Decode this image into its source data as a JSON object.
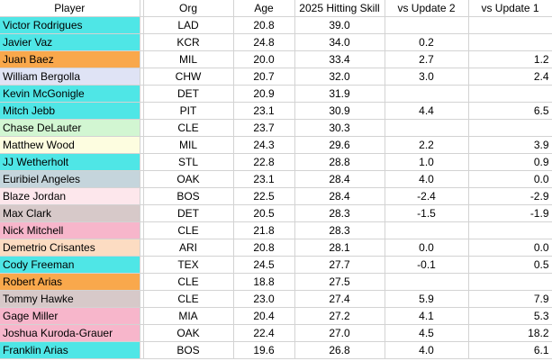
{
  "headers": {
    "player": "Player",
    "org": "Org",
    "age": "Age",
    "skill": "2025 Hitting Skill",
    "vs_update2": "vs Update 2",
    "vs_update1": "vs Update 1"
  },
  "colors": {
    "cyan": "#4fe6e6",
    "orange": "#f9a84c",
    "lavender": "#dfe3f5",
    "mint": "#d2f6d2",
    "cream": "#fdfde0",
    "slate": "#c5d5dc",
    "blush": "#fde7ec",
    "taupe": "#d7c9c9",
    "pink": "#f7b6cb",
    "peach": "#fcdcc2",
    "grid": "#d3d3d3"
  },
  "rows": [
    {
      "player": "Victor Rodrigues",
      "org": "LAD",
      "age": "20.8",
      "skill": "39.0",
      "vs_update2": "",
      "vs_update1": "",
      "color": "#4fe6e6"
    },
    {
      "player": "Javier Vaz",
      "org": "KCR",
      "age": "24.8",
      "skill": "34.0",
      "vs_update2": "0.2",
      "vs_update1": "",
      "color": "#4fe6e6"
    },
    {
      "player": "Juan Baez",
      "org": "MIL",
      "age": "20.0",
      "skill": "33.4",
      "vs_update2": "2.7",
      "vs_update1": "1.2",
      "color": "#f9a84c"
    },
    {
      "player": "William Bergolla",
      "org": "CHW",
      "age": "20.7",
      "skill": "32.0",
      "vs_update2": "3.0",
      "vs_update1": "2.4",
      "color": "#dfe3f5"
    },
    {
      "player": "Kevin McGonigle",
      "org": "DET",
      "age": "20.9",
      "skill": "31.9",
      "vs_update2": "",
      "vs_update1": "",
      "color": "#4fe6e6"
    },
    {
      "player": "Mitch Jebb",
      "org": "PIT",
      "age": "23.1",
      "skill": "30.9",
      "vs_update2": "4.4",
      "vs_update1": "6.5",
      "color": "#4fe6e6"
    },
    {
      "player": "Chase DeLauter",
      "org": "CLE",
      "age": "23.7",
      "skill": "30.3",
      "vs_update2": "",
      "vs_update1": "",
      "color": "#d2f6d2"
    },
    {
      "player": "Matthew Wood",
      "org": "MIL",
      "age": "24.3",
      "skill": "29.6",
      "vs_update2": "2.2",
      "vs_update1": "3.9",
      "color": "#fdfde0"
    },
    {
      "player": "JJ Wetherholt",
      "org": "STL",
      "age": "22.8",
      "skill": "28.8",
      "vs_update2": "1.0",
      "vs_update1": "0.9",
      "color": "#4fe6e6"
    },
    {
      "player": "Euribiel Angeles",
      "org": "OAK",
      "age": "23.1",
      "skill": "28.4",
      "vs_update2": "4.0",
      "vs_update1": "0.0",
      "color": "#c5d5dc"
    },
    {
      "player": "Blaze Jordan",
      "org": "BOS",
      "age": "22.5",
      "skill": "28.4",
      "vs_update2": "-2.4",
      "vs_update1": "-2.9",
      "color": "#fde7ec"
    },
    {
      "player": "Max Clark",
      "org": "DET",
      "age": "20.5",
      "skill": "28.3",
      "vs_update2": "-1.5",
      "vs_update1": "-1.9",
      "color": "#d7c9c9"
    },
    {
      "player": "Nick Mitchell",
      "org": "CLE",
      "age": "21.8",
      "skill": "28.3",
      "vs_update2": "",
      "vs_update1": "",
      "color": "#f7b6cb"
    },
    {
      "player": "Demetrio Crisantes",
      "org": "ARI",
      "age": "20.8",
      "skill": "28.1",
      "vs_update2": "0.0",
      "vs_update1": "0.0",
      "color": "#fcdcc2"
    },
    {
      "player": "Cody Freeman",
      "org": "TEX",
      "age": "24.5",
      "skill": "27.7",
      "vs_update2": "-0.1",
      "vs_update1": "0.5",
      "color": "#4fe6e6"
    },
    {
      "player": "Robert Arias",
      "org": "CLE",
      "age": "18.8",
      "skill": "27.5",
      "vs_update2": "",
      "vs_update1": "",
      "color": "#f9a84c"
    },
    {
      "player": "Tommy Hawke",
      "org": "CLE",
      "age": "23.0",
      "skill": "27.4",
      "vs_update2": "5.9",
      "vs_update1": "7.9",
      "color": "#d7c9c9"
    },
    {
      "player": "Gage Miller",
      "org": "MIA",
      "age": "20.4",
      "skill": "27.2",
      "vs_update2": "4.1",
      "vs_update1": "5.3",
      "color": "#f7b6cb"
    },
    {
      "player": "Joshua Kuroda-Grauer",
      "org": "OAK",
      "age": "22.4",
      "skill": "27.0",
      "vs_update2": "4.5",
      "vs_update1": "18.2",
      "color": "#f7b6cb"
    },
    {
      "player": "Franklin Arias",
      "org": "BOS",
      "age": "19.6",
      "skill": "26.8",
      "vs_update2": "4.0",
      "vs_update1": "6.1",
      "color": "#4fe6e6"
    }
  ]
}
